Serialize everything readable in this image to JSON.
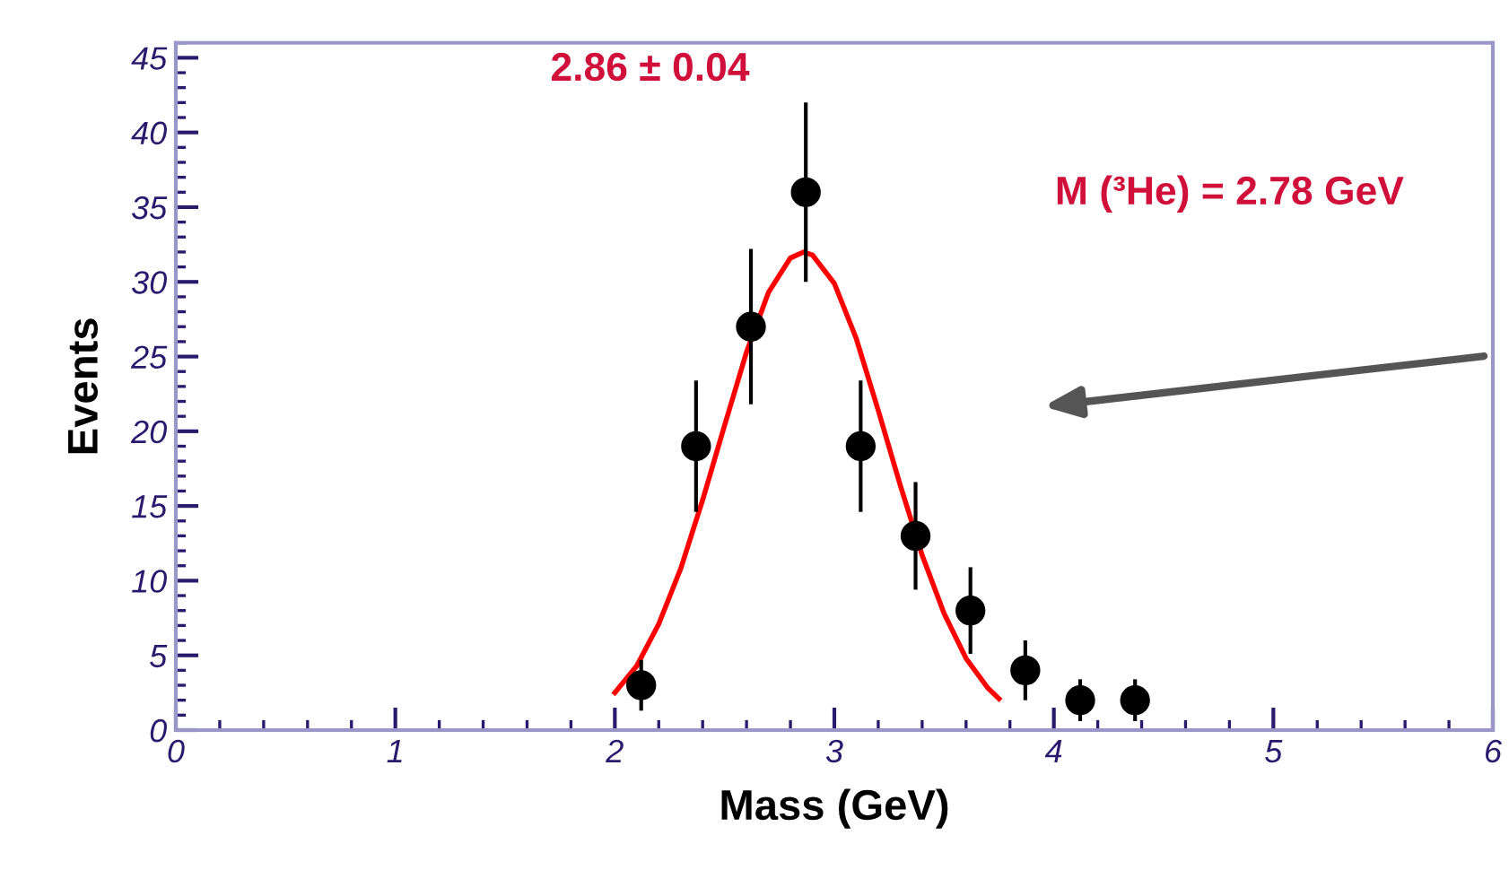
{
  "chart_data": {
    "type": "scatter",
    "xlabel": "Mass (GeV)",
    "ylabel": "Events",
    "annotations": [
      "2.86 ± 0.04",
      "M (³He) = 2.78 GeV"
    ],
    "xlim": [
      0,
      6
    ],
    "xticks": [
      0,
      1,
      2,
      3,
      4,
      5,
      6
    ],
    "ylim": [
      0,
      46
    ],
    "yticks": [
      0,
      5,
      10,
      15,
      20,
      25,
      30,
      35,
      40,
      45
    ],
    "grid": false,
    "legend": false,
    "marker": "circle",
    "series": [
      {
        "color": "#000000",
        "x": [
          2.12,
          2.37,
          2.62,
          2.87,
          3.12,
          3.37,
          3.62,
          3.87,
          4.12,
          4.37
        ],
        "values": [
          3,
          19,
          27,
          36,
          19,
          13,
          8,
          4,
          2,
          2
        ],
        "errors": [
          1.7,
          4.4,
          5.2,
          6,
          4.4,
          3.6,
          2.9,
          2,
          1.4,
          1.4
        ]
      },
      {
        "type": "line",
        "color": "#ff0000",
        "marker": "none",
        "line_style": "solid",
        "x": [
          2.0,
          2.1,
          2.2,
          2.3,
          2.4,
          2.5,
          2.6,
          2.7,
          2.8,
          2.86,
          2.9,
          3.0,
          3.1,
          3.2,
          3.3,
          3.4,
          3.5,
          3.6,
          3.7,
          3.75
        ],
        "values": [
          2.5,
          4.3,
          7.1,
          10.8,
          15.4,
          20.4,
          25.3,
          29.3,
          31.6,
          32,
          31.8,
          29.9,
          26.2,
          21.4,
          16.4,
          11.7,
          7.8,
          4.8,
          2.8,
          2.1
        ]
      }
    ]
  }
}
